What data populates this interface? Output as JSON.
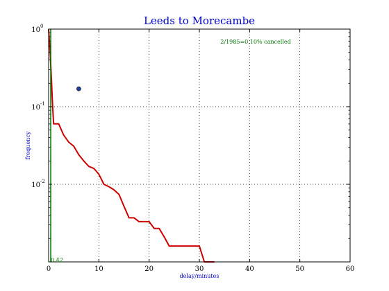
{
  "chart_data": {
    "type": "line",
    "title": "Leeds to Morecambe",
    "xlabel": "delay/minutes",
    "ylabel": "frequency",
    "xlim": [
      0,
      60
    ],
    "ylim": [
      0.001,
      1
    ],
    "yscale": "log",
    "grid": true,
    "x_ticks": [
      "0",
      "10",
      "20",
      "30",
      "40",
      "50",
      "60"
    ],
    "y_tick_labels": [
      {
        "value": 1,
        "base": "10",
        "exp": "0"
      },
      {
        "value": 0.1,
        "base": "10",
        "exp": "-1"
      },
      {
        "value": 0.01,
        "base": "10",
        "exp": "-2"
      }
    ],
    "annotations": {
      "cancelled": "2/1985=0.10% cancelled",
      "mean_value": "0.42"
    },
    "series": [
      {
        "color": "#cc0000",
        "style": "step-line",
        "x": [
          0,
          0.3,
          0.6,
          0.8,
          1,
          2,
          3,
          4,
          5,
          6,
          7,
          8,
          9,
          10,
          11,
          12,
          13,
          14,
          15,
          16,
          17,
          18,
          19,
          20,
          21,
          22,
          23,
          24,
          25,
          26,
          27,
          28,
          29,
          30,
          31,
          32,
          33
        ],
        "y": [
          1.0,
          0.5,
          0.2,
          0.1,
          0.06,
          0.06,
          0.043,
          0.035,
          0.031,
          0.024,
          0.02,
          0.017,
          0.016,
          0.0135,
          0.01,
          0.0093,
          0.0085,
          0.0074,
          0.0052,
          0.0037,
          0.0037,
          0.0033,
          0.0033,
          0.0033,
          0.0027,
          0.0027,
          0.0021,
          0.0016,
          0.0016,
          0.0016,
          0.0016,
          0.0016,
          0.0016,
          0.0016,
          0.001,
          0.001,
          0.001
        ]
      },
      {
        "color": "#1f3f9f",
        "style": "marker",
        "x": [
          6
        ],
        "y": [
          0.17
        ]
      },
      {
        "color": "#007700",
        "style": "vline",
        "x": [
          0.42
        ]
      }
    ]
  }
}
